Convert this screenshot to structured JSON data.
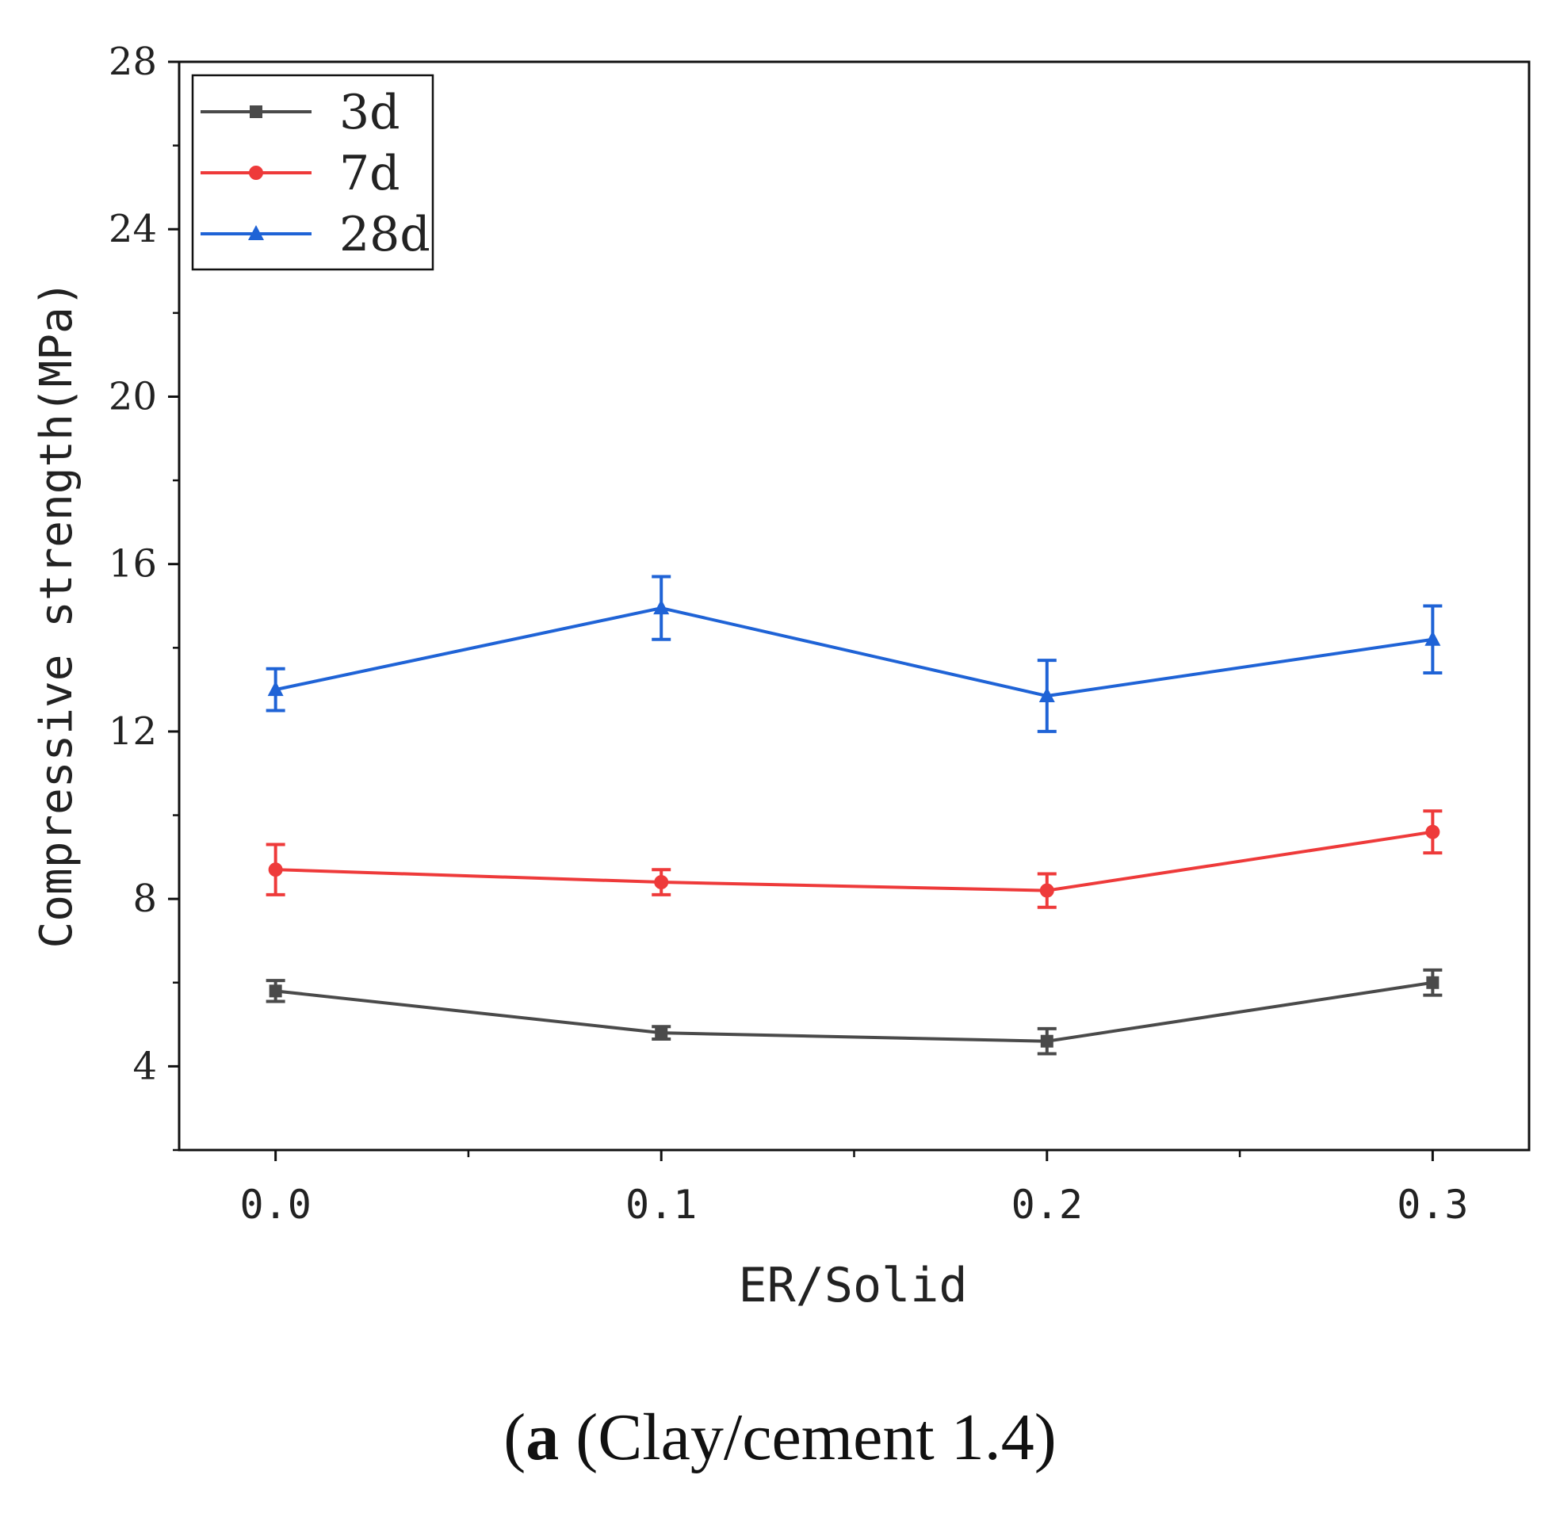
{
  "chart_data": {
    "type": "line",
    "xlabel": "ER/Solid",
    "ylabel": "Compressive strength(MPa)",
    "x": [
      0.0,
      0.1,
      0.2,
      0.3
    ],
    "x_tick_labels": [
      "0.0",
      "0.1",
      "0.2",
      "0.3"
    ],
    "xlim": [
      -0.025,
      0.325
    ],
    "ylim": [
      2,
      28
    ],
    "y_ticks": [
      4,
      8,
      12,
      16,
      20,
      24,
      28
    ],
    "y_tick_labels": [
      "4",
      "8",
      "12",
      "16",
      "20",
      "24",
      "28"
    ],
    "grid": false,
    "legend_position": "top-left",
    "series": [
      {
        "name": "3d",
        "color": "#4a4a4a",
        "marker": "square",
        "values": [
          5.8,
          4.8,
          4.6,
          6.0
        ],
        "errors": [
          0.25,
          0.15,
          0.3,
          0.3
        ]
      },
      {
        "name": "7d",
        "color": "#ee3a3a",
        "marker": "circle",
        "values": [
          8.7,
          8.4,
          8.2,
          9.6
        ],
        "errors": [
          0.6,
          0.3,
          0.4,
          0.5
        ]
      },
      {
        "name": "28d",
        "color": "#1f63d6",
        "marker": "triangle",
        "values": [
          13.0,
          14.95,
          12.85,
          14.2
        ],
        "errors": [
          0.5,
          0.75,
          0.85,
          0.8
        ]
      }
    ]
  },
  "caption": {
    "label": "a",
    "text": " (Clay/cement 1.4)"
  }
}
